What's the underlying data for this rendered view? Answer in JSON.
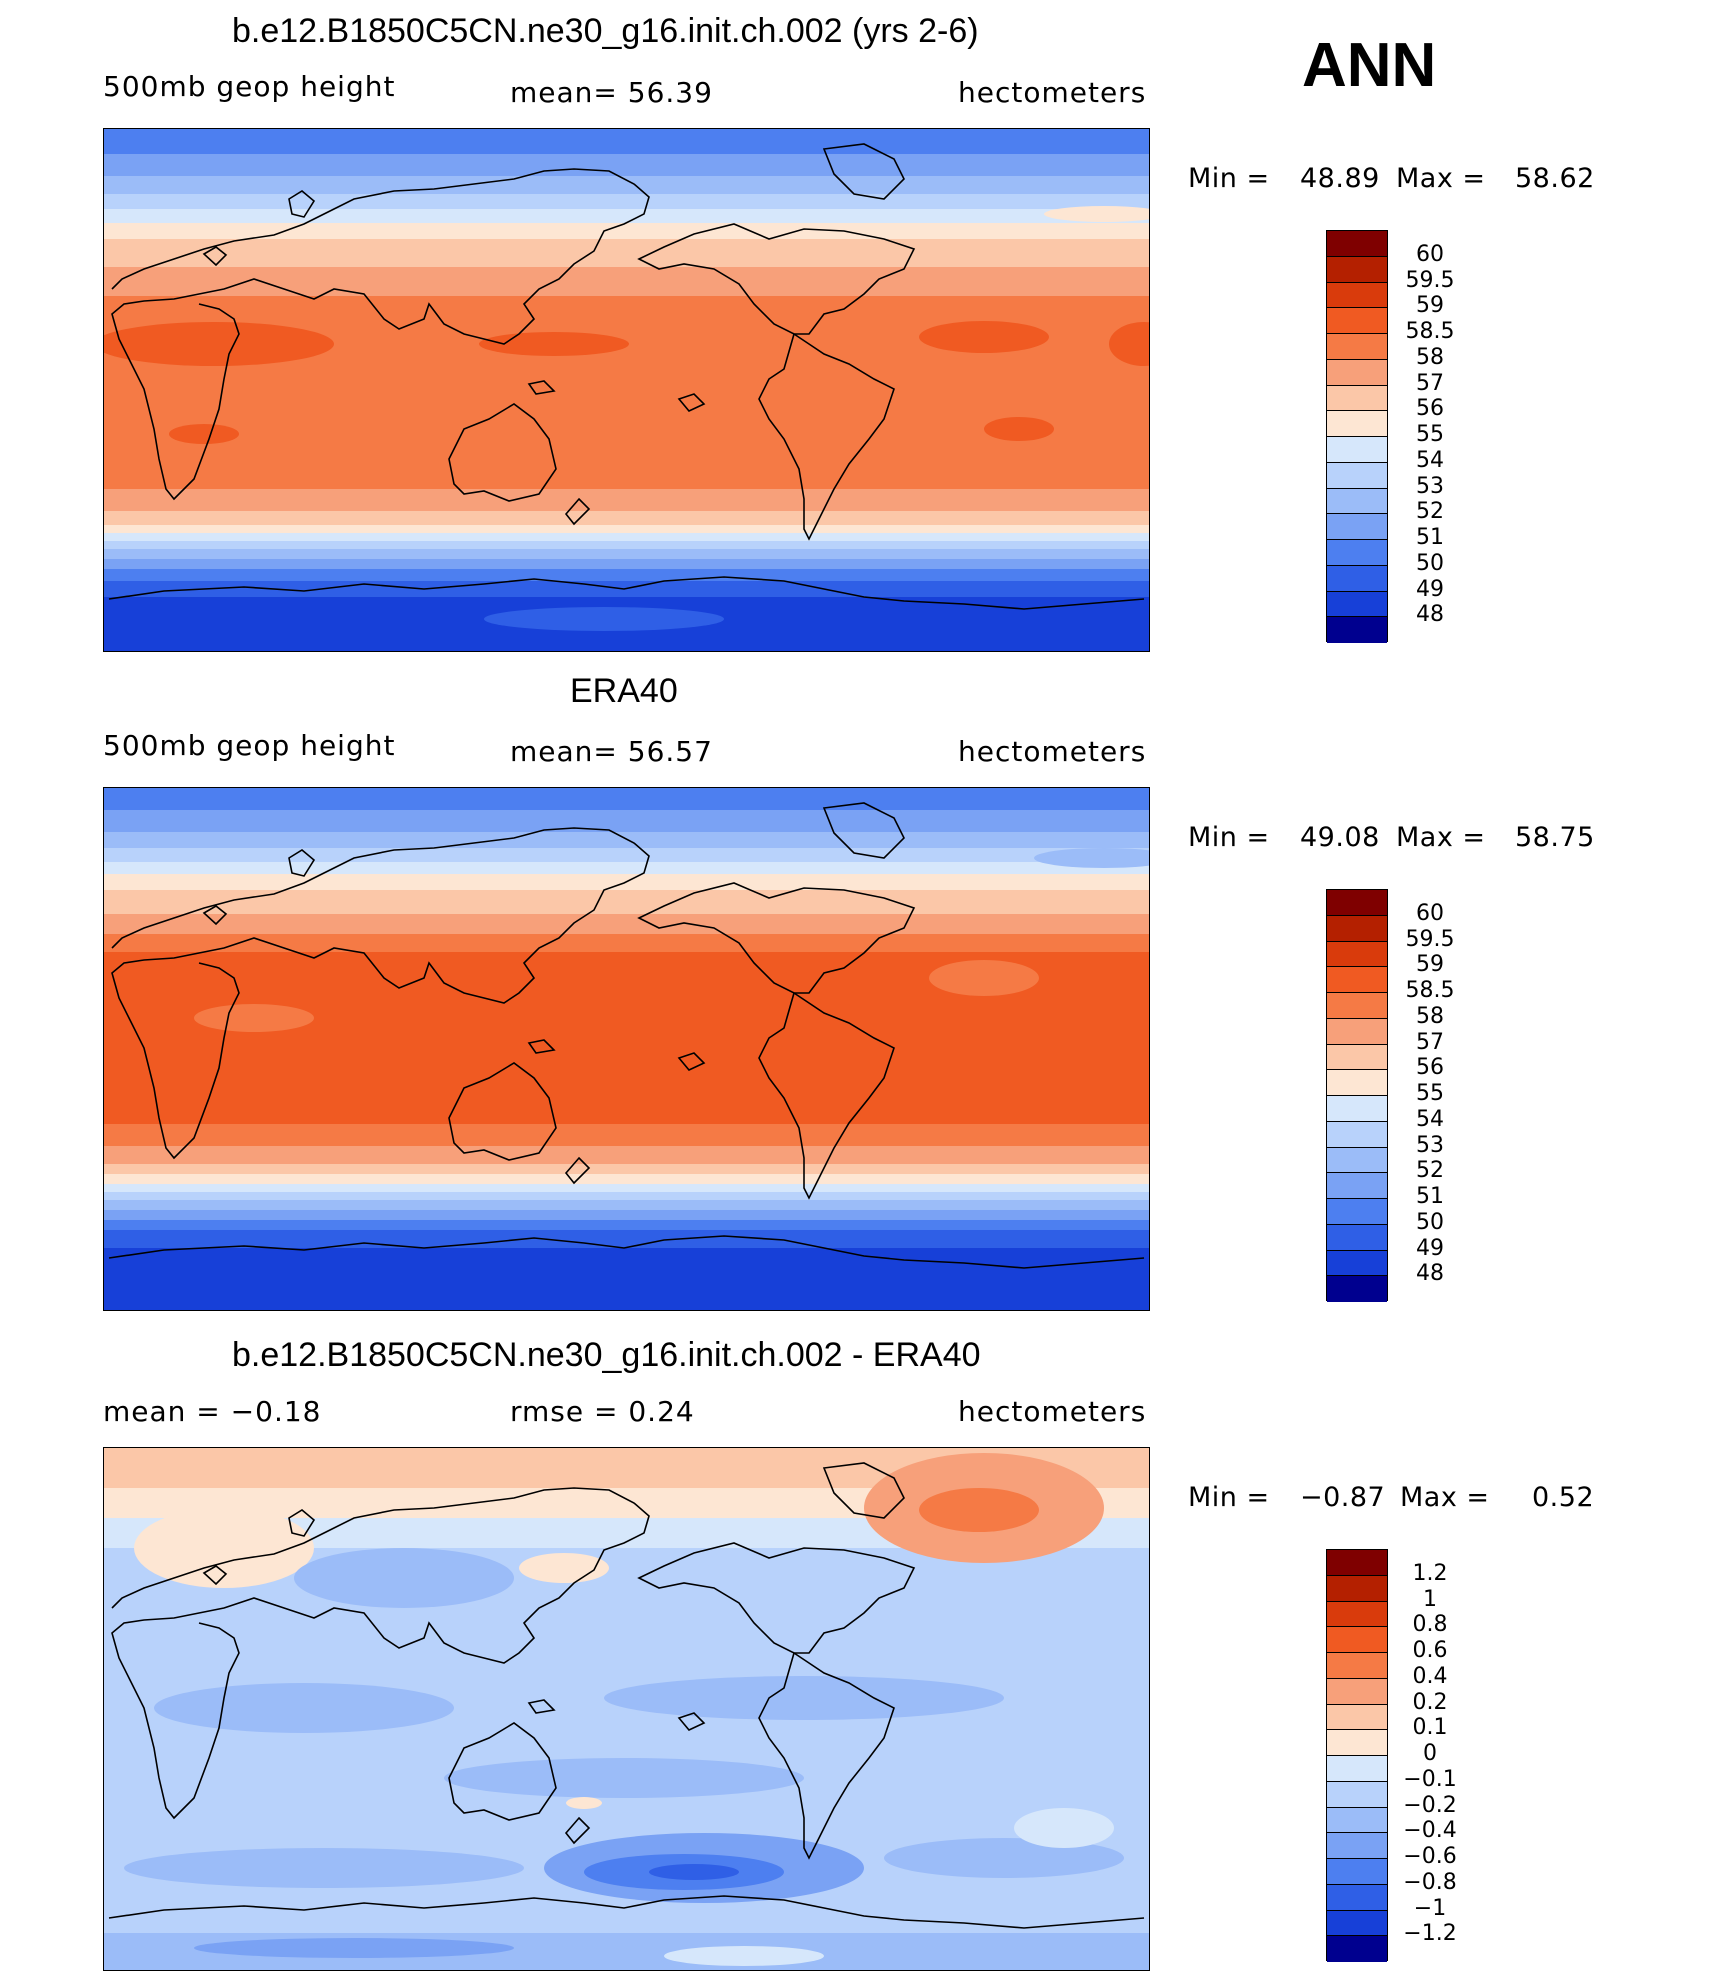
{
  "header": {
    "season": "ANN"
  },
  "panels": [
    {
      "id": "model",
      "title": "b.e12.B1850C5CN.ne30_g16.init.ch.002 (yrs 2-6)",
      "left_label": "500mb  geop  height",
      "center_label": "mean=   56.39",
      "right_label": "hectometers",
      "min_label": "Min  =",
      "min_value": "48.89",
      "max_label": "Max  =",
      "max_value": "58.62",
      "colorbar_labels": [
        "60",
        "59.5",
        "59",
        "58.5",
        "58",
        "57",
        "56",
        "55",
        "54",
        "53",
        "52",
        "51",
        "50",
        "49",
        "48"
      ]
    },
    {
      "id": "obs",
      "title": "ERA40",
      "left_label": "500mb  geop  height",
      "center_label": "mean=   56.57",
      "right_label": "hectometers",
      "min_label": "Min  =",
      "min_value": "49.08",
      "max_label": "Max  =",
      "max_value": "58.75",
      "colorbar_labels": [
        "60",
        "59.5",
        "59",
        "58.5",
        "58",
        "57",
        "56",
        "55",
        "54",
        "53",
        "52",
        "51",
        "50",
        "49",
        "48"
      ]
    },
    {
      "id": "diff",
      "title": "b.e12.B1850C5CN.ne30_g16.init.ch.002 - ERA40",
      "left_label": "mean  =    −0.18",
      "center_label": "rmse  =     0.24",
      "right_label": "hectometers",
      "min_label": "Min  =",
      "min_value": "−0.87",
      "max_label": "Max  =",
      "max_value": "0.52",
      "colorbar_labels": [
        "1.2",
        "1",
        "0.8",
        "0.6",
        "0.4",
        "0.2",
        "0.1",
        "0",
        "−0.1",
        "−0.2",
        "−0.4",
        "−0.6",
        "−0.8",
        "−1",
        "−1.2"
      ]
    }
  ],
  "colormap": [
    "#7f0000",
    "#b42000",
    "#d93b0c",
    "#f05a22",
    "#f57a45",
    "#f7a07a",
    "#fbc7a8",
    "#fde6d3",
    "#d6e7fb",
    "#b8d2fb",
    "#9bbcf8",
    "#7aa2f4",
    "#4d7ff0",
    "#2f5fe6",
    "#1740d8",
    "#00008f"
  ]
}
